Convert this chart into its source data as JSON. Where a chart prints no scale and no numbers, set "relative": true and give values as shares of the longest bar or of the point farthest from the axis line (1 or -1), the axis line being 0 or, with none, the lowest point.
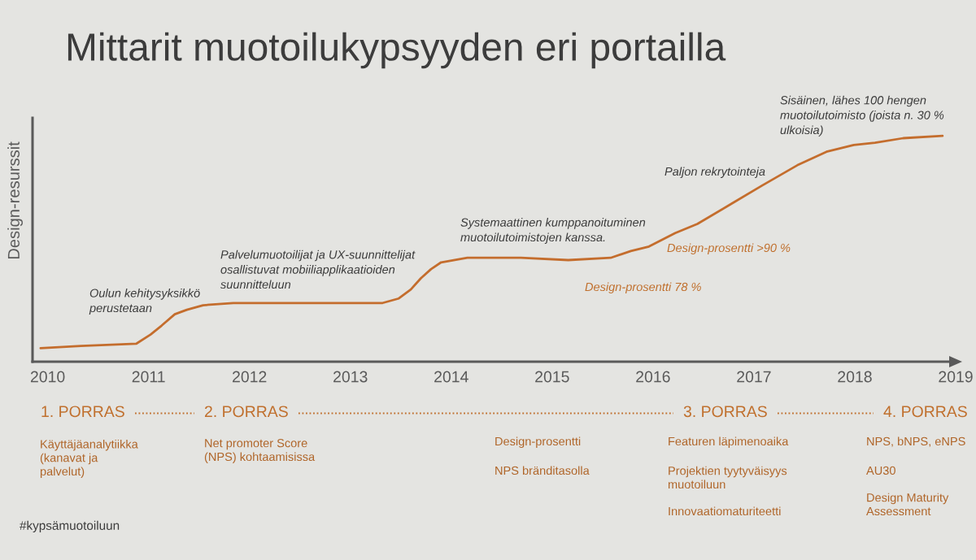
{
  "chart_data": {
    "type": "line",
    "title": "Mittarit muotoilukypsyyden eri portailla",
    "ylabel": "Design-resurssit",
    "relative": true,
    "color": "#c46d2d",
    "x": [
      2009.93,
      2010.33,
      2010.88,
      2011.02,
      2011.13,
      2011.26,
      2011.38,
      2011.54,
      2011.84,
      2012.35,
      2013.07,
      2013.32,
      2013.48,
      2013.6,
      2013.7,
      2013.8,
      2013.9,
      2014.16,
      2014.69,
      2015.16,
      2015.58,
      2015.78,
      2015.96,
      2016.22,
      2016.44,
      2016.78,
      2017.08,
      2017.43,
      2017.72,
      2017.99,
      2018.2,
      2018.48,
      2018.87
    ],
    "values": [
      0.06,
      0.07,
      0.08,
      0.12,
      0.16,
      0.21,
      0.23,
      0.25,
      0.26,
      0.26,
      0.26,
      0.26,
      0.28,
      0.32,
      0.37,
      0.41,
      0.44,
      0.46,
      0.46,
      0.45,
      0.46,
      0.49,
      0.51,
      0.57,
      0.61,
      0.7,
      0.78,
      0.87,
      0.93,
      0.96,
      0.97,
      0.99,
      1.0
    ],
    "xlim": [
      2009.85,
      2019
    ],
    "xticks": [
      2010,
      2011,
      2012,
      2013,
      2014,
      2015,
      2016,
      2017,
      2018,
      2019
    ],
    "tick_labels": "x",
    "annotations": [
      "Oulun kehitysyksikkö\nperustetaan",
      "Palvelumuotoilijat ja UX-suunnittelijat\nosallistuvat mobiiliapplikaatioiden\nsuunnitteluun",
      "Systemaattinen kumppanoituminen\nmuotoilutoimistojen kanssa.",
      "Design-prosentti 78 %",
      "Design-prosentti >90 %",
      "Paljon rekrytointeja",
      "Sisäinen, lähes 100 hengen\nmuotoilutoimisto (joista n. 30 %\nulkoisia)",
      "1. PORRAS",
      "2. PORRAS",
      "3. PORRAS",
      "4. PORRAS",
      "Käyttäjäanalytiikka\n(kanavat ja\npalvelut)",
      "Net promoter Score\n(NPS) kohtaamisissa",
      "Design-prosentti",
      "NPS bränditasolla",
      "Featuren läpimenoaika",
      "Projektien tyytyväisyys\nmuotoiluun",
      "Innovaatiomaturiteetti",
      "NPS, bNPS, eNPS",
      "AU30",
      "Design Maturity\nAssessment",
      "#kypsämuotoiluun"
    ]
  }
}
